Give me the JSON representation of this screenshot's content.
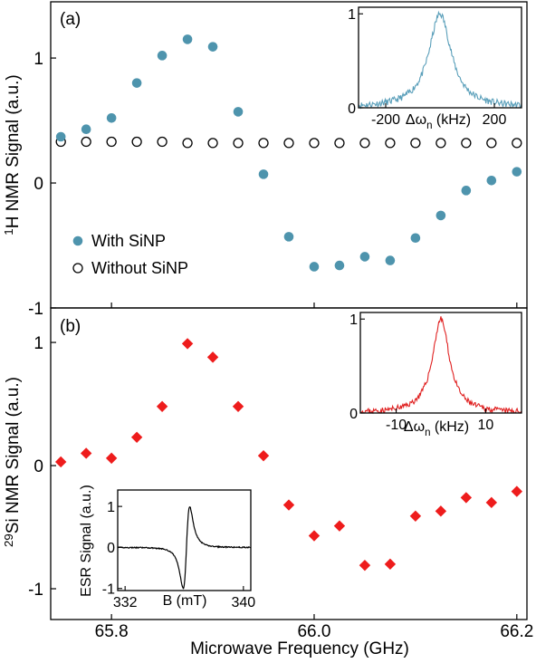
{
  "figure": {
    "xlabel": "Microwave Frequency (GHz)"
  },
  "chart_data": [
    {
      "id": "a",
      "type": "scatter",
      "panel_label": "(a)",
      "ylabel_pre": "1",
      "ylabel_main": "H NMR Signal (a.u.)",
      "xlim": [
        65.74,
        66.21
      ],
      "ylim": [
        -1.0,
        1.45
      ],
      "x_ticks": [
        65.8,
        66.0,
        66.2
      ],
      "y_ticks": [
        -1,
        0,
        1
      ],
      "y_tick_labels": [
        "-1",
        "0",
        "1"
      ],
      "series": [
        {
          "name": "With SiNP",
          "marker": "filled-circle",
          "color": "#4e94ad",
          "x": [
            65.75,
            65.775,
            65.8,
            65.825,
            65.85,
            65.875,
            65.9,
            65.925,
            65.95,
            65.975,
            66.0,
            66.025,
            66.05,
            66.075,
            66.1,
            66.125,
            66.15,
            66.175,
            66.2
          ],
          "y": [
            0.37,
            0.43,
            0.52,
            0.8,
            1.02,
            1.15,
            1.09,
            0.57,
            0.07,
            -0.43,
            -0.67,
            -0.66,
            -0.59,
            -0.62,
            -0.44,
            -0.26,
            -0.06,
            0.02,
            0.09
          ]
        },
        {
          "name": "Without SiNP",
          "marker": "open-circle",
          "color": "#000000",
          "x": [
            65.75,
            65.775,
            65.8,
            65.825,
            65.85,
            65.875,
            65.9,
            65.925,
            65.95,
            65.975,
            66.0,
            66.025,
            66.05,
            66.075,
            66.1,
            66.125,
            66.15,
            66.175,
            66.2
          ],
          "y": [
            0.33,
            0.33,
            0.33,
            0.33,
            0.33,
            0.32,
            0.32,
            0.32,
            0.32,
            0.32,
            0.32,
            0.32,
            0.32,
            0.32,
            0.32,
            0.32,
            0.32,
            0.32,
            0.32
          ]
        }
      ],
      "inset": {
        "type": "line",
        "color": "#5a9fba",
        "xlabel_pre": "Δω",
        "xlabel_sub": "n",
        "xlabel_post": " (kHz)",
        "xlim": [
          -300,
          300
        ],
        "ylim": [
          0,
          1.07
        ],
        "x_tick_labels": [
          "-200",
          "200"
        ],
        "x_ticks": [
          -200,
          200
        ],
        "y_ticks": [
          0,
          1
        ],
        "y_tick_labels": [
          "0",
          "1"
        ],
        "lineshape": {
          "form": "lorentzian",
          "center": 0,
          "hwhm": 50,
          "amplitude": 1.0
        }
      }
    },
    {
      "id": "b",
      "type": "scatter",
      "panel_label": "(b)",
      "ylabel_pre": "29",
      "ylabel_main": "Si NMR Signal (a.u.)",
      "xlim": [
        65.74,
        66.21
      ],
      "ylim": [
        -1.25,
        1.28
      ],
      "x_ticks": [
        65.8,
        66.0,
        66.2
      ],
      "x_tick_labels": [
        "65.8",
        "66.0",
        "66.2"
      ],
      "y_ticks": [
        -1,
        0,
        1
      ],
      "y_tick_labels": [
        "-1",
        "0",
        "1"
      ],
      "series": [
        {
          "marker": "filled-diamond",
          "color": "#ee1c1c",
          "x": [
            65.75,
            65.775,
            65.8,
            65.825,
            65.85,
            65.875,
            65.9,
            65.925,
            65.95,
            65.975,
            66.0,
            66.025,
            66.05,
            66.075,
            66.1,
            66.125,
            66.15,
            66.175,
            66.2
          ],
          "y": [
            0.03,
            0.1,
            0.06,
            0.23,
            0.48,
            0.99,
            0.88,
            0.48,
            0.08,
            -0.32,
            -0.57,
            -0.49,
            -0.81,
            -0.8,
            -0.41,
            -0.37,
            -0.26,
            -0.3,
            -0.21
          ]
        }
      ],
      "inset_nmr": {
        "type": "line",
        "color": "#e02020",
        "xlabel_pre": "Δω",
        "xlabel_sub": "n",
        "xlabel_post": " (kHz)",
        "xlim": [
          -18,
          18
        ],
        "ylim": [
          0,
          1.07
        ],
        "x_ticks": [
          -10,
          10
        ],
        "x_tick_labels": [
          "-10",
          "10"
        ],
        "y_ticks": [
          0,
          1
        ],
        "y_tick_labels": [
          "0",
          "1"
        ],
        "lineshape": {
          "form": "lorentzian",
          "center": 0,
          "hwhm": 2.3,
          "amplitude": 1.0
        }
      },
      "inset_esr": {
        "type": "line",
        "color": "#000000",
        "xlabel": "B (mT)",
        "ylabel": "ESR Signal (a.u.)",
        "xlim": [
          331.5,
          340.5
        ],
        "ylim": [
          -1.05,
          1.4
        ],
        "x_ticks": [
          332,
          340
        ],
        "x_tick_labels": [
          "332",
          "340"
        ],
        "y_ticks": [
          -1,
          0,
          1
        ],
        "y_tick_labels": [
          "-1",
          "0",
          "1"
        ],
        "lineshape": {
          "form": "lorentzian-derivative",
          "center": 336.15,
          "width": 0.38,
          "amplitude": 1.18
        }
      }
    }
  ]
}
